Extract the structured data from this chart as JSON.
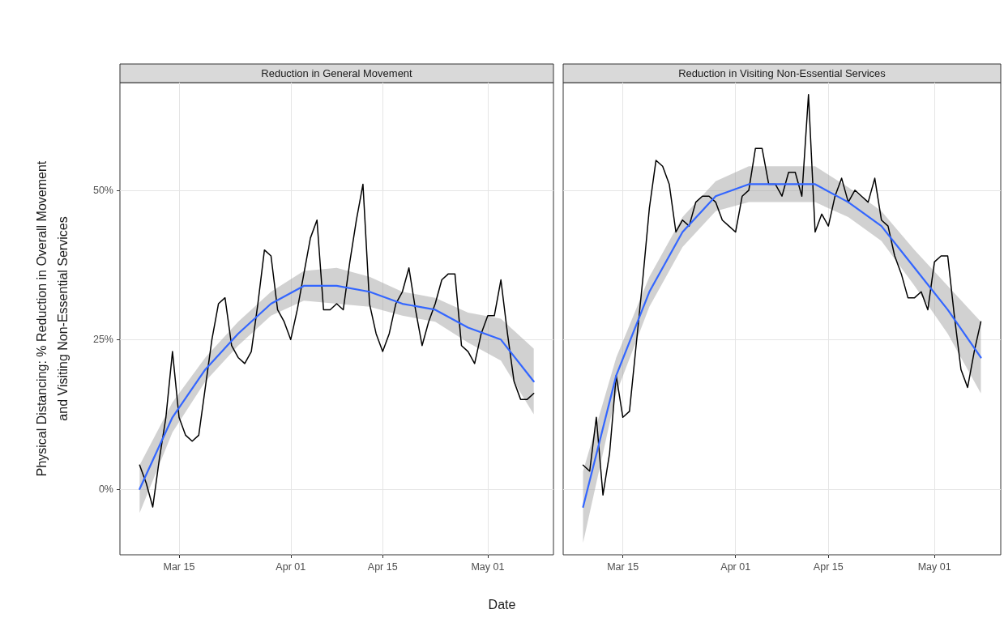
{
  "chart_data": [
    {
      "type": "line",
      "title": "Reduction in General Movement",
      "xlabel": "Date",
      "ylabel": "Physical Distancing: % Reduction in Overall Movement\nand Visiting Non-Essential Services",
      "xlim": [
        "--03-06",
        "--05-11"
      ],
      "xticks": [
        {
          "value": "--03-15",
          "label": "Mar 15"
        },
        {
          "value": "--04-01",
          "label": "Apr 01"
        },
        {
          "value": "--04-15",
          "label": "Apr 15"
        },
        {
          "value": "--05-01",
          "label": "May 01"
        }
      ],
      "ylim": [
        -11,
        68
      ],
      "yticks": [
        {
          "value": 0,
          "label": "0%"
        },
        {
          "value": 25,
          "label": "25%"
        },
        {
          "value": 50,
          "label": "50%"
        }
      ],
      "grid": true,
      "series": [
        {
          "color": "#000000",
          "x": [
            "--03-09",
            "--03-10",
            "--03-11",
            "--03-12",
            "--03-13",
            "--03-14",
            "--03-15",
            "--03-16",
            "--03-17",
            "--03-18",
            "--03-19",
            "--03-20",
            "--03-21",
            "--03-22",
            "--03-23",
            "--03-24",
            "--03-25",
            "--03-26",
            "--03-27",
            "--03-28",
            "--03-29",
            "--03-30",
            "--03-31",
            "--04-01",
            "--04-02",
            "--04-03",
            "--04-04",
            "--04-05",
            "--04-06",
            "--04-07",
            "--04-08",
            "--04-09",
            "--04-10",
            "--04-11",
            "--04-12",
            "--04-13",
            "--04-14",
            "--04-15",
            "--04-16",
            "--04-17",
            "--04-18",
            "--04-19",
            "--04-20",
            "--04-21",
            "--04-22",
            "--04-23",
            "--04-24",
            "--04-25",
            "--04-26",
            "--04-27",
            "--04-28",
            "--04-29",
            "--04-30",
            "--05-01",
            "--05-02",
            "--05-03",
            "--05-04",
            "--05-05",
            "--05-06",
            "--05-07",
            "--05-08"
          ],
          "values": [
            4,
            1,
            -3,
            5,
            12,
            23,
            12,
            9,
            8,
            9,
            17,
            25,
            31,
            32,
            24,
            22,
            21,
            23,
            31,
            40,
            39,
            30,
            28,
            25,
            30,
            36,
            42,
            45,
            30,
            30,
            31,
            30,
            38,
            45,
            51,
            31,
            26,
            23,
            26,
            31,
            33,
            37,
            30,
            24,
            28,
            31,
            35,
            36,
            36,
            24,
            23,
            21,
            26,
            29,
            29,
            35,
            26,
            18,
            15,
            15,
            16
          ]
        },
        {
          "color": "#3366ff",
          "x": [
            "--03-09",
            "--03-14",
            "--03-19",
            "--03-24",
            "--03-29",
            "--04-03",
            "--04-08",
            "--04-13",
            "--04-18",
            "--04-23",
            "--04-28",
            "--05-03",
            "--05-08"
          ],
          "values": [
            0,
            12,
            20,
            26,
            31,
            34,
            34,
            33,
            31,
            30,
            27,
            25,
            18
          ],
          "lower": [
            -4,
            9.5,
            18,
            24,
            29,
            31.5,
            31,
            30.5,
            29,
            28,
            24.5,
            21.5,
            12.5
          ],
          "upper": [
            4,
            14.5,
            22,
            28,
            33,
            36.5,
            37,
            35.5,
            33,
            32,
            29.5,
            28.5,
            23.5
          ]
        }
      ]
    },
    {
      "type": "line",
      "title": "Reduction in Visiting Non-Essential Services",
      "tick_labels": "x",
      "xlim": [
        "--03-06",
        "--05-11"
      ],
      "xticks": [
        {
          "value": "--03-15",
          "label": "Mar 15"
        },
        {
          "value": "--04-01",
          "label": "Apr 01"
        },
        {
          "value": "--04-15",
          "label": "Apr 15"
        },
        {
          "value": "--05-01",
          "label": "May 01"
        }
      ],
      "ylim": [
        -11,
        68
      ],
      "yticks": [
        0,
        25,
        50
      ],
      "grid": true,
      "series": [
        {
          "color": "#000000",
          "x": [
            "--03-09",
            "--03-10",
            "--03-11",
            "--03-12",
            "--03-13",
            "--03-14",
            "--03-15",
            "--03-16",
            "--03-17",
            "--03-18",
            "--03-19",
            "--03-20",
            "--03-21",
            "--03-22",
            "--03-23",
            "--03-24",
            "--03-25",
            "--03-26",
            "--03-27",
            "--03-28",
            "--03-29",
            "--03-30",
            "--03-31",
            "--04-01",
            "--04-02",
            "--04-03",
            "--04-04",
            "--04-05",
            "--04-06",
            "--04-07",
            "--04-08",
            "--04-09",
            "--04-10",
            "--04-11",
            "--04-12",
            "--04-13",
            "--04-14",
            "--04-15",
            "--04-16",
            "--04-17",
            "--04-18",
            "--04-19",
            "--04-20",
            "--04-21",
            "--04-22",
            "--04-23",
            "--04-24",
            "--04-25",
            "--04-26",
            "--04-27",
            "--04-28",
            "--04-29",
            "--04-30",
            "--05-01",
            "--05-02",
            "--05-03",
            "--05-04",
            "--05-05",
            "--05-06",
            "--05-07",
            "--05-08"
          ],
          "values": [
            4,
            3,
            12,
            -1,
            6,
            19,
            12,
            13,
            24,
            35,
            47,
            55,
            54,
            51,
            43,
            45,
            44,
            48,
            49,
            49,
            48,
            45,
            44,
            43,
            49,
            50,
            57,
            57,
            51,
            51,
            49,
            53,
            53,
            49,
            66,
            43,
            46,
            44,
            49,
            52,
            48,
            50,
            49,
            48,
            52,
            45,
            44,
            39,
            36,
            32,
            32,
            33,
            30,
            38,
            39,
            39,
            29,
            20,
            17,
            23,
            28
          ]
        },
        {
          "color": "#3366ff",
          "x": [
            "--03-09",
            "--03-14",
            "--03-19",
            "--03-24",
            "--03-29",
            "--04-03",
            "--04-08",
            "--04-13",
            "--04-18",
            "--04-23",
            "--04-28",
            "--05-03",
            "--05-08"
          ],
          "values": [
            -3,
            19,
            33,
            43,
            49,
            51,
            51,
            51,
            48,
            44,
            37,
            30,
            22
          ],
          "lower": [
            -9,
            16,
            30.5,
            40.5,
            46.5,
            48,
            48,
            48,
            45.5,
            41.5,
            34,
            26,
            16
          ],
          "upper": [
            3,
            22,
            35.5,
            45.5,
            51.5,
            54,
            54,
            54,
            50.5,
            46.5,
            40,
            34,
            28
          ]
        }
      ]
    }
  ]
}
